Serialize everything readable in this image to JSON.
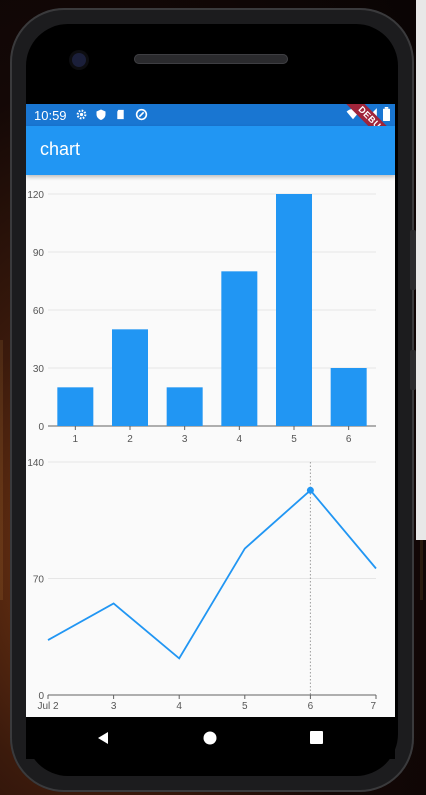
{
  "status_bar": {
    "time": "10:59"
  },
  "app_bar": {
    "title": "chart",
    "debug_label": "DEBUG"
  },
  "chart_data": [
    {
      "type": "bar",
      "categories": [
        "1",
        "2",
        "3",
        "4",
        "5",
        "6"
      ],
      "values": [
        20,
        50,
        20,
        80,
        120,
        30
      ],
      "yticks": [
        "0",
        "30",
        "60",
        "90",
        "120"
      ],
      "ylim": [
        0,
        120
      ],
      "color": "#2196f3",
      "title": "",
      "xlabel": "",
      "ylabel": ""
    },
    {
      "type": "line",
      "x": [
        "Jul 2",
        "3",
        "4",
        "5",
        "6",
        "7"
      ],
      "values": [
        33,
        55,
        22,
        88,
        123,
        76
      ],
      "yticks": [
        "0",
        "70",
        "140"
      ],
      "ylim": [
        0,
        140
      ],
      "highlighted_index": 4,
      "color": "#2196f3",
      "title": "",
      "xlabel": "",
      "ylabel": ""
    }
  ],
  "nav_bar": {
    "back": "back-icon",
    "home": "home-icon",
    "recents": "recents-icon"
  }
}
